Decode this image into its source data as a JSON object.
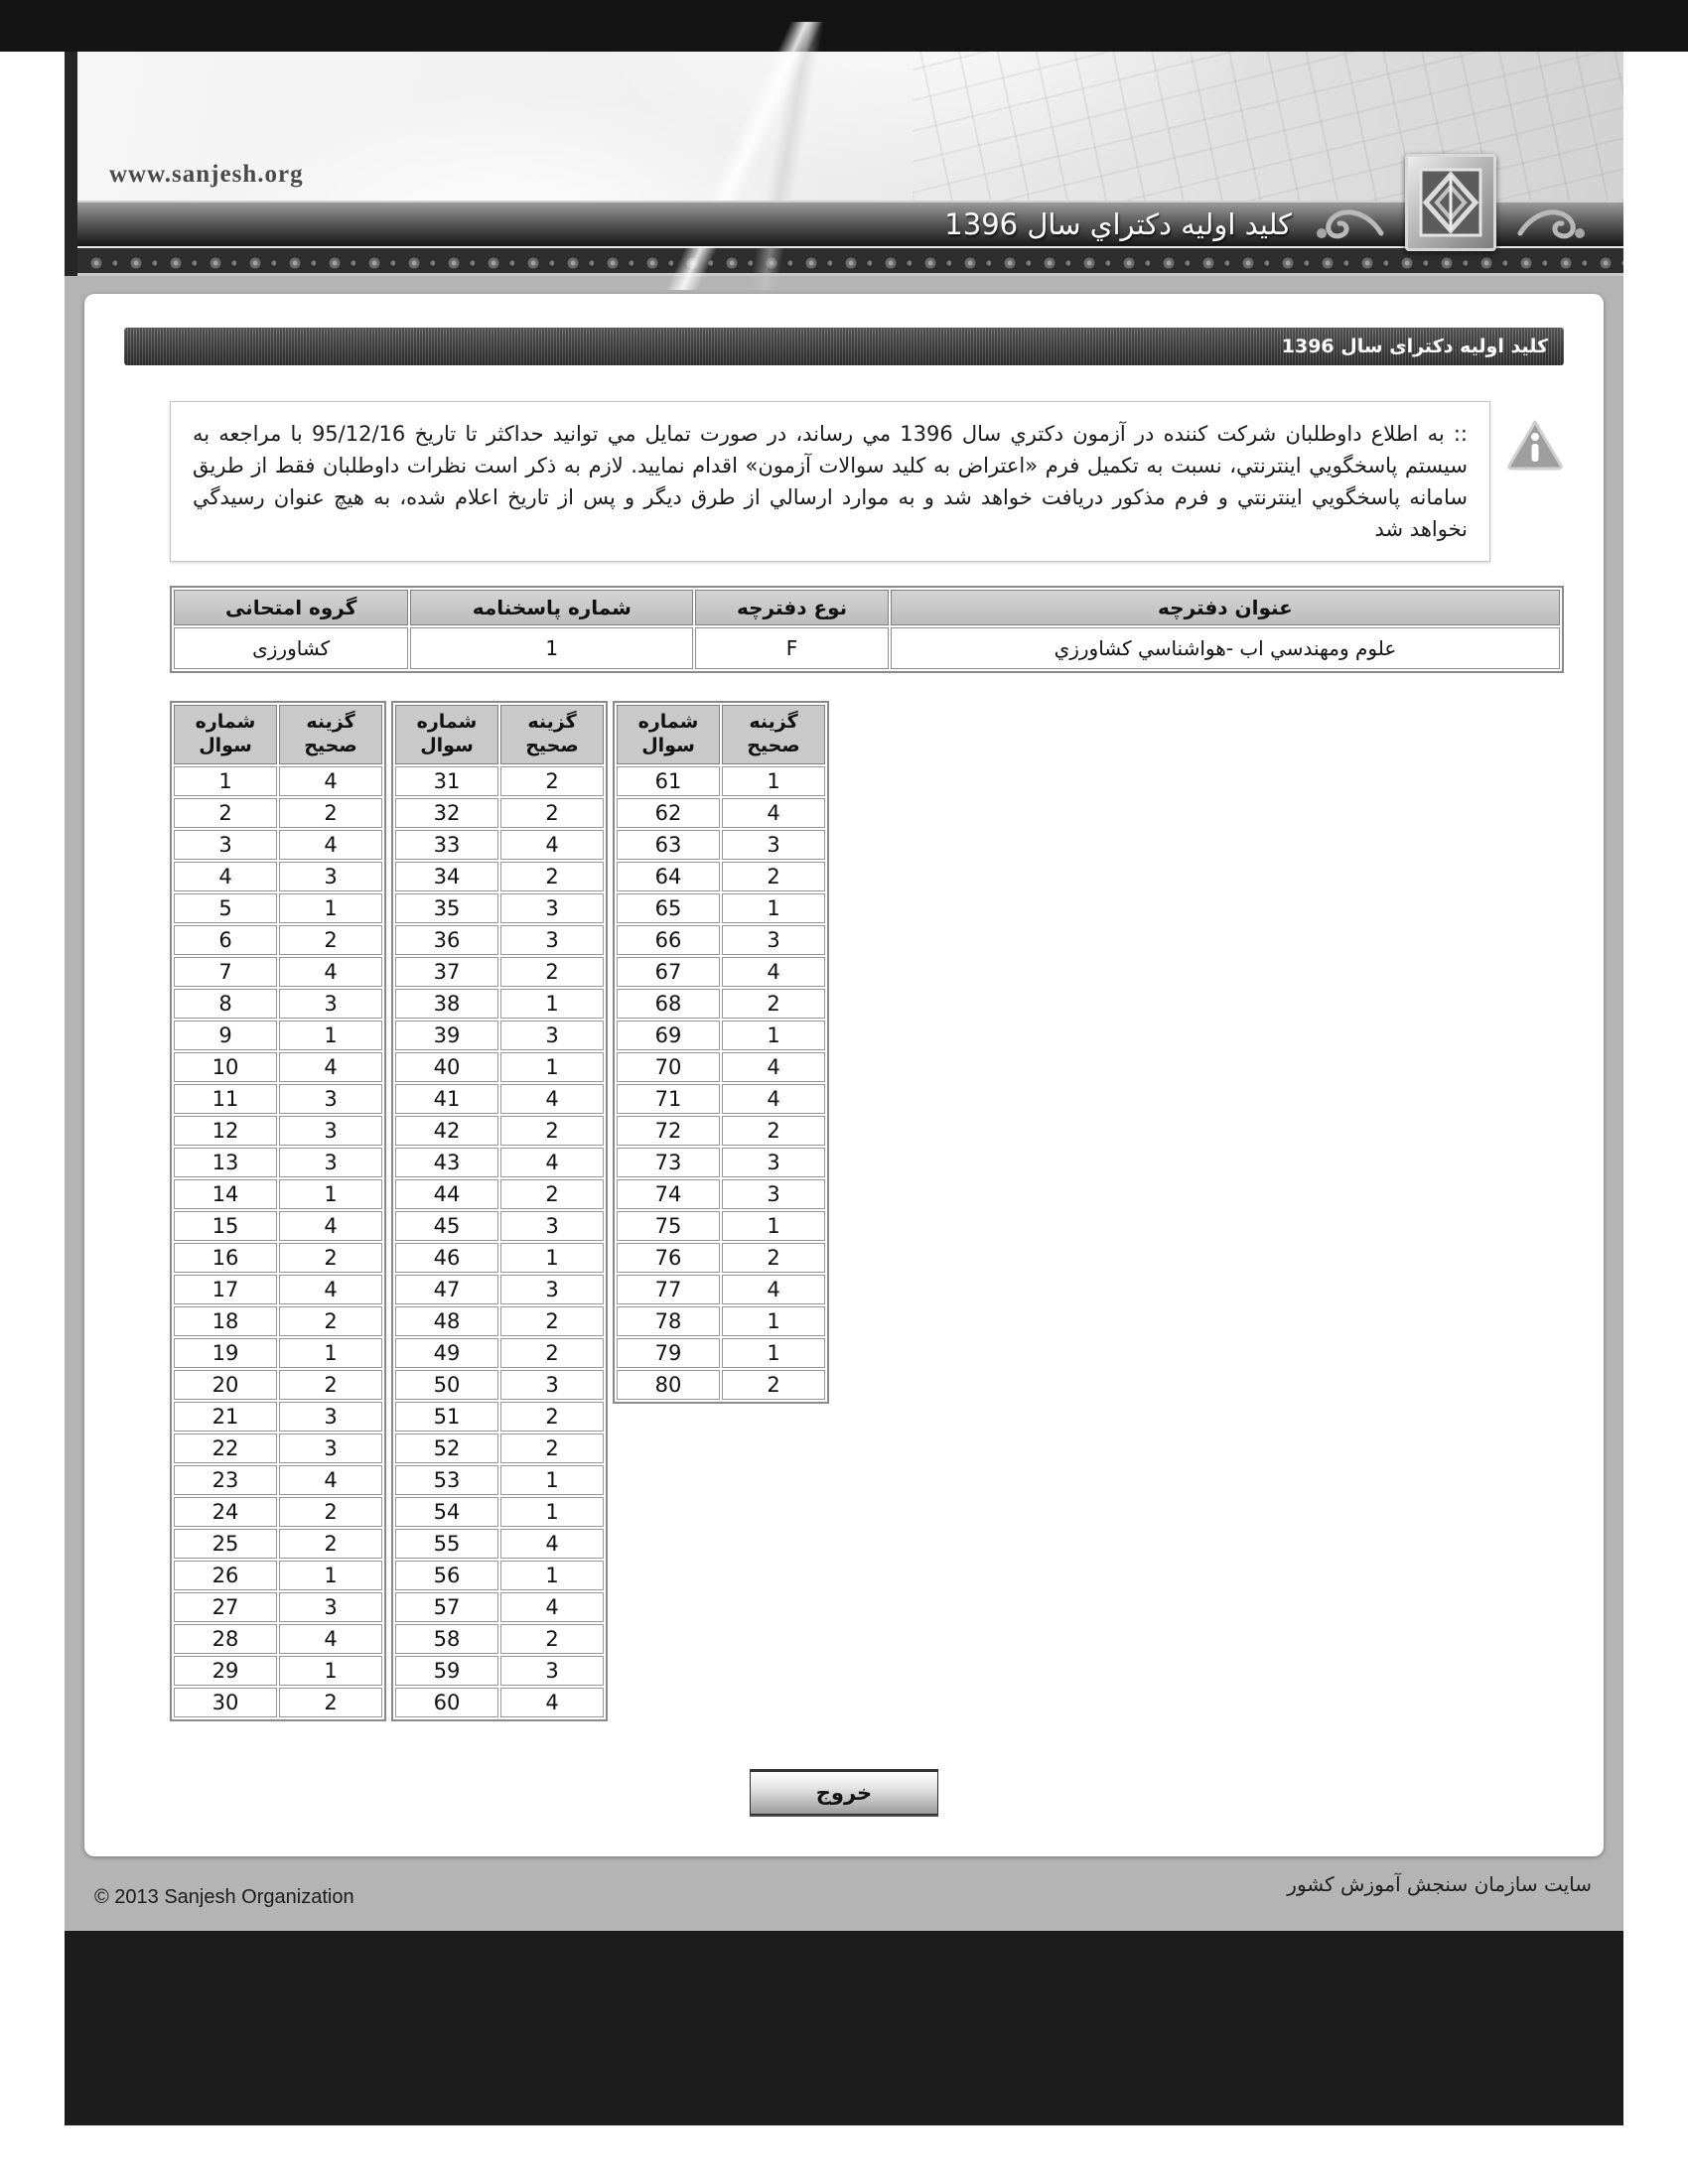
{
  "header": {
    "url_text": "www.sanjesh.org",
    "title": "کلید اولیه دکتراي سال 1396"
  },
  "panel": {
    "header_bar": "کلید اولیه دکترای سال 1396"
  },
  "notice": {
    "text": ":: به اطلاع داوطلبان شرکت کننده در آزمون دکتري سال 1396 مي رساند، در صورت تمایل مي توانید حداکثر تا تاریخ 95/12/16 با مراجعه به سیستم پاسخگویي اینترنتي، نسبت به تکمیل فرم «اعتراض به کلید سوالات آزمون» اقدام نمایید. لازم به ذکر است نظرات داوطلبان فقط از طریق سامانه پاسخگویي اینترنتي و فرم مذکور دریافت خواهد شد و به موارد ارسالي از طرق دیگر و پس از تاریخ اعلام شده، به هیچ عنوان رسیدگي نخواهد شد"
  },
  "booklet": {
    "headers": {
      "title": "عنوان دفترچه",
      "type": "نوع دفترچه",
      "sheet_no": "شماره پاسخنامه",
      "group": "گروه امتحانی"
    },
    "values": {
      "title": "علوم ومهندسي اب -هواشناسي کشاورزي",
      "type": "F",
      "sheet_no": "1",
      "group": "کشاورزی"
    }
  },
  "answer_tables": {
    "col_question": "شماره سوال",
    "col_answer": "گزینه صحیح",
    "tables": [
      {
        "start": 1,
        "answers": [
          4,
          2,
          4,
          3,
          1,
          2,
          4,
          3,
          1,
          4,
          3,
          3,
          3,
          1,
          4,
          2,
          4,
          2,
          1,
          2,
          3,
          3,
          4,
          2,
          2,
          1,
          3,
          4,
          1,
          2
        ]
      },
      {
        "start": 31,
        "answers": [
          2,
          2,
          4,
          2,
          3,
          3,
          2,
          1,
          3,
          1,
          4,
          2,
          4,
          2,
          3,
          1,
          3,
          2,
          2,
          3,
          2,
          2,
          1,
          1,
          4,
          1,
          4,
          2,
          3,
          4
        ]
      },
      {
        "start": 61,
        "answers": [
          1,
          4,
          3,
          2,
          1,
          3,
          4,
          2,
          1,
          4,
          4,
          2,
          3,
          3,
          1,
          2,
          4,
          1,
          1,
          2
        ]
      }
    ]
  },
  "exit_button_label": "خروج",
  "footer": {
    "right_text": "سایت سازمان سنجش آموزش کشور",
    "left_text": "© 2013 Sanjesh Organization"
  },
  "colors": {
    "chrome_dark": "#141414",
    "body_gray": "#b4b4b4",
    "bar_dark": "#343434",
    "table_header_bg": "#c9c9c9",
    "panel_bg": "#ffffff"
  }
}
